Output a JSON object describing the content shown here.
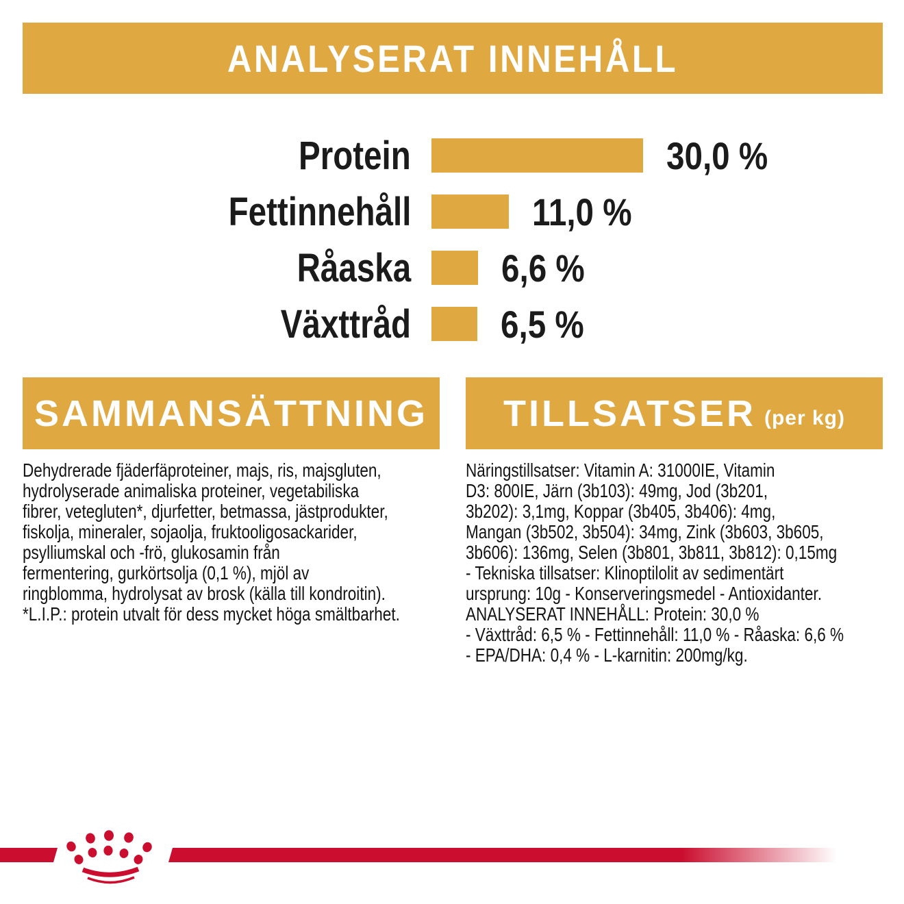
{
  "banner": {
    "title": "ANALYSERAT INNEHÅLL"
  },
  "chart_data": {
    "type": "bar",
    "orientation": "horizontal",
    "title": "ANALYSERAT INNEHÅLL",
    "categories": [
      "Protein",
      "Fettinnehåll",
      "Råaska",
      "Växttråd"
    ],
    "values": [
      30.0,
      11.0,
      6.6,
      6.5
    ],
    "value_labels": [
      "30,0 %",
      "11,0 %",
      "6,6 %",
      "6,5 %"
    ],
    "unit": "%",
    "xlim": [
      0,
      30
    ],
    "bar_color": "#dfa841",
    "grid": false,
    "legend": false
  },
  "sections": {
    "composition": {
      "title": "SAMMANSÄTTNING",
      "body": "Dehydrerade fjäderfäproteiner, majs, ris, majsgluten,\nhydrolyserade animaliska proteiner, vegetabiliska\nfibrer, vetegluten*, djurfetter, betmassa, jästprodukter,\nfiskolja, mineraler, sojaolja, fruktooligosackarider,\npsylliumskal och -frö, glukosamin från\nfermentering, gurkörtsolja (0,1 %), mjöl av\nringblomma, hydrolysat av brosk (källa till kondroitin).\n*L.I.P.: protein utvalt för dess mycket höga smältbarhet."
    },
    "additives": {
      "title": "TILLSATSER",
      "title_suffix": "(per kg)",
      "body": "Näringstillsatser: Vitamin A: 31000IE, Vitamin\nD3: 800IE, Järn (3b103): 49mg, Jod (3b201,\n3b202): 3,1mg, Koppar (3b405, 3b406): 4mg,\nMangan (3b502, 3b504): 34mg, Zink (3b603, 3b605,\n3b606): 136mg, Selen (3b801, 3b811, 3b812): 0,15mg\n- Tekniska tillsatser: Klinoptilolit av sedimentärt\nursprung: 10g - Konserveringsmedel - Antioxidanter.\nANALYSERAT INNEHÅLL: Protein: 30,0 %\n- Växttråd: 6,5 % - Fettinnehåll: 11,0 % - Råaska: 6,6 %\n- EPA/DHA: 0,4 % - L-karnitin: 200mg/kg."
    }
  },
  "footer": {
    "logo": "royal-canin-crown-logo"
  },
  "colors": {
    "gold": "#dfa841",
    "red": "#cb0e2f",
    "text": "#1b1b1b",
    "header_text": "#ffffff"
  }
}
